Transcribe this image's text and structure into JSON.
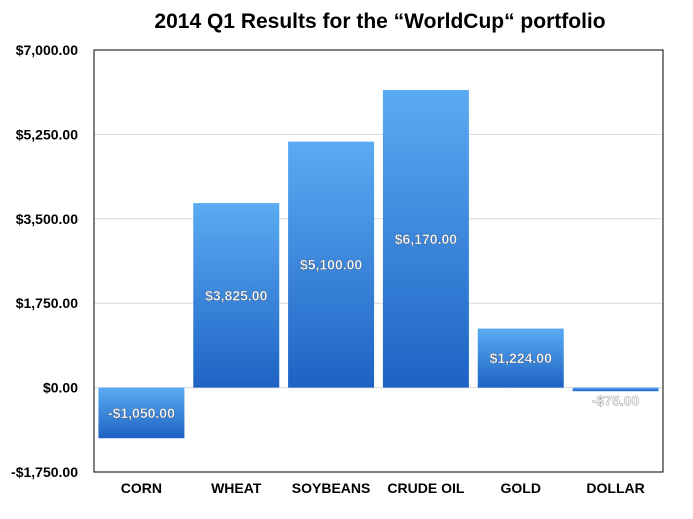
{
  "chart_data": {
    "type": "bar",
    "title": "2014 Q1 Results for the “WorldCup“ portfolio",
    "categories": [
      "CORN",
      "WHEAT",
      "SOYBEANS",
      "CRUDE OIL",
      "GOLD",
      "DOLLAR"
    ],
    "values": [
      -1050,
      3825,
      5100,
      6170,
      1224,
      -75
    ],
    "data_labels": [
      "-$1,050.00",
      "$3,825.00",
      "$5,100.00",
      "$6,170.00",
      "$1,224.00",
      "-$75.00"
    ],
    "yticks": [
      -1750,
      0,
      1750,
      3500,
      5250,
      7000
    ],
    "ytick_labels": [
      "-$1,750.00",
      "$0.00",
      "$1,750.00",
      "$3,500.00",
      "$5,250.00",
      "$7,000.00"
    ],
    "ylim": [
      -1750,
      7000
    ],
    "xlabel": "",
    "ylabel": "",
    "grid": true,
    "legend": "none",
    "colors": {
      "bar_top": "#5aabf2",
      "bar_bottom": "#1e63c4",
      "grid": "#d9d9d9",
      "axis": "#000000"
    }
  }
}
